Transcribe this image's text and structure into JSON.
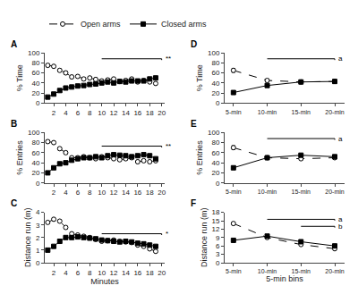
{
  "chart_data": [
    {
      "type": "line",
      "title": "A",
      "ylabel": "% Time",
      "x": [
        1,
        2,
        3,
        4,
        5,
        6,
        7,
        8,
        9,
        10,
        11,
        12,
        13,
        14,
        15,
        16,
        17,
        18,
        19
      ],
      "xlim": [
        0.5,
        20.5
      ],
      "xticks": [
        2,
        4,
        6,
        8,
        10,
        12,
        14,
        16,
        18,
        20
      ],
      "ylim": [
        0,
        100
      ],
      "yticks": [
        0,
        20,
        40,
        60,
        80,
        100
      ],
      "grid": false,
      "legend": "top",
      "series": [
        {
          "name": "Open arms",
          "color": "black",
          "marker": "circle-open",
          "line_style": "dash",
          "values": [
            75,
            73,
            65,
            60,
            52,
            53,
            48,
            50,
            47,
            44,
            46,
            48,
            43,
            45,
            48,
            42,
            45,
            42,
            39
          ],
          "errors": [
            3,
            3,
            3,
            3,
            3,
            3,
            3,
            3,
            3,
            3,
            3,
            3,
            3,
            3,
            3,
            3,
            3,
            3,
            3
          ]
        },
        {
          "name": "Closed arms",
          "color": "black",
          "marker": "square",
          "line_style": "solid",
          "values": [
            12,
            18,
            25,
            30,
            32,
            34,
            35,
            37,
            38,
            40,
            42,
            40,
            43,
            42,
            44,
            44,
            44,
            48,
            50
          ],
          "errors": [
            2,
            2,
            2,
            2,
            2,
            2,
            2,
            2,
            2,
            2,
            2,
            2,
            2,
            2,
            2,
            2,
            2,
            2,
            3
          ]
        }
      ],
      "annotations": [
        {
          "text": "**",
          "x_start": 10,
          "x_end": 20,
          "y": 88
        }
      ]
    },
    {
      "type": "line",
      "title": "B",
      "ylabel": "% Entries",
      "x": [
        1,
        2,
        3,
        4,
        5,
        6,
        7,
        8,
        9,
        10,
        11,
        12,
        13,
        14,
        15,
        16,
        17,
        18,
        19
      ],
      "xlim": [
        0.5,
        20.5
      ],
      "xticks": [
        2,
        4,
        6,
        8,
        10,
        12,
        14,
        16,
        18,
        20
      ],
      "ylim": [
        0,
        100
      ],
      "yticks": [
        0,
        20,
        40,
        60,
        80,
        100
      ],
      "grid": false,
      "series": [
        {
          "name": "Open arms",
          "color": "black",
          "marker": "circle-open",
          "line_style": "dash",
          "values": [
            82,
            80,
            68,
            60,
            50,
            50,
            52,
            50,
            48,
            52,
            50,
            48,
            46,
            48,
            50,
            42,
            44,
            42,
            44
          ],
          "errors": [
            3,
            3,
            3,
            3,
            3,
            3,
            3,
            3,
            3,
            3,
            3,
            3,
            3,
            3,
            3,
            3,
            3,
            3,
            3
          ]
        },
        {
          "name": "Closed arms",
          "color": "black",
          "marker": "square",
          "line_style": "solid",
          "values": [
            20,
            30,
            38,
            40,
            45,
            48,
            50,
            50,
            52,
            50,
            54,
            56,
            55,
            54,
            52,
            54,
            56,
            54,
            48
          ],
          "errors": [
            2,
            2,
            2,
            2,
            2,
            2,
            2,
            2,
            2,
            2,
            2,
            2,
            2,
            2,
            2,
            2,
            2,
            2,
            2
          ]
        }
      ],
      "annotations": [
        {
          "text": "**",
          "x_start": 10,
          "x_end": 20,
          "y": 73
        }
      ]
    },
    {
      "type": "line",
      "title": "C",
      "ylabel": "Distance run (m)",
      "xlabel": "Minutes",
      "x": [
        1,
        2,
        3,
        4,
        5,
        6,
        7,
        8,
        9,
        10,
        11,
        12,
        13,
        14,
        15,
        16,
        17,
        18,
        19
      ],
      "xlim": [
        0.5,
        20.5
      ],
      "xticks": [
        2,
        4,
        6,
        8,
        10,
        12,
        14,
        16,
        18,
        20
      ],
      "ylim": [
        0,
        4
      ],
      "yticks": [
        0,
        1,
        2,
        3,
        4
      ],
      "grid": false,
      "series": [
        {
          "name": "Open arms",
          "color": "black",
          "marker": "circle-open",
          "line_style": "dash",
          "values": [
            3.2,
            3.45,
            3.3,
            2.8,
            2.3,
            2.2,
            2.1,
            2.0,
            1.85,
            1.7,
            1.75,
            1.8,
            1.7,
            1.65,
            1.6,
            1.4,
            1.3,
            1.1,
            0.9
          ],
          "errors": [
            0.1,
            0.12,
            0.1,
            0.1,
            0.1,
            0.1,
            0.08,
            0.08,
            0.08,
            0.08,
            0.08,
            0.08,
            0.08,
            0.08,
            0.08,
            0.08,
            0.08,
            0.08,
            0.08
          ]
        },
        {
          "name": "Closed arms",
          "color": "black",
          "marker": "square",
          "line_style": "solid",
          "values": [
            1.0,
            1.3,
            1.7,
            2.0,
            2.0,
            2.05,
            2.0,
            1.95,
            1.9,
            1.8,
            1.75,
            1.7,
            1.65,
            1.7,
            1.65,
            1.55,
            1.5,
            1.4,
            1.3
          ],
          "errors": [
            0.08,
            0.08,
            0.08,
            0.08,
            0.08,
            0.08,
            0.08,
            0.08,
            0.08,
            0.08,
            0.08,
            0.08,
            0.08,
            0.08,
            0.08,
            0.08,
            0.08,
            0.08,
            0.08
          ]
        }
      ],
      "annotations": [
        {
          "text": "*",
          "x_start": 10,
          "x_end": 20,
          "y": 2.3
        }
      ]
    },
    {
      "type": "line",
      "title": "D",
      "ylabel": "% Time",
      "categories": [
        "5-min",
        "10-min",
        "15-min",
        "20-min"
      ],
      "ylim": [
        0,
        100
      ],
      "yticks": [
        0,
        20,
        40,
        60,
        80,
        100
      ],
      "grid": false,
      "series": [
        {
          "name": "Open arms",
          "color": "black",
          "marker": "circle-open",
          "line_style": "dash",
          "values": [
            65,
            45,
            42,
            43
          ],
          "errors": [
            4,
            3,
            3,
            3
          ]
        },
        {
          "name": "Closed arms",
          "color": "black",
          "marker": "square",
          "line_style": "solid",
          "values": [
            21,
            35,
            42,
            43
          ],
          "errors": [
            3,
            3,
            3,
            3
          ]
        }
      ],
      "annotations": [
        {
          "text": "a",
          "x_start": "10-min",
          "x_end": "20-min",
          "y": 88
        }
      ]
    },
    {
      "type": "line",
      "title": "E",
      "ylabel": "% Entries",
      "categories": [
        "5-min",
        "10-min",
        "15-min",
        "20-min"
      ],
      "ylim": [
        0,
        100
      ],
      "yticks": [
        0,
        20,
        40,
        60,
        80,
        100
      ],
      "grid": false,
      "series": [
        {
          "name": "Open arms",
          "color": "black",
          "marker": "circle-open",
          "line_style": "dash",
          "values": [
            70,
            50,
            48,
            50
          ],
          "errors": [
            4,
            3,
            3,
            3
          ]
        },
        {
          "name": "Closed arms",
          "color": "black",
          "marker": "square",
          "line_style": "solid",
          "values": [
            30,
            50,
            55,
            52
          ],
          "errors": [
            3,
            3,
            3,
            3
          ]
        }
      ],
      "annotations": [
        {
          "text": "a",
          "x_start": "10-min",
          "x_end": "20-min",
          "y": 88
        }
      ]
    },
    {
      "type": "line",
      "title": "F",
      "ylabel": "Distance run (m)",
      "xlabel": "5-min bins",
      "categories": [
        "5-min",
        "10-min",
        "15-min",
        "20-min"
      ],
      "ylim": [
        0,
        18
      ],
      "yticks": [
        0,
        3,
        6,
        9,
        12,
        15,
        18
      ],
      "grid": false,
      "series": [
        {
          "name": "Open arms",
          "color": "black",
          "marker": "circle-open",
          "line_style": "dash",
          "values": [
            14.0,
            9.0,
            6.5,
            5.0
          ],
          "errors": [
            0.5,
            0.5,
            0.4,
            0.4
          ]
        },
        {
          "name": "Closed arms",
          "color": "black",
          "marker": "square",
          "line_style": "solid",
          "values": [
            8.0,
            9.5,
            7.5,
            6.0
          ],
          "errors": [
            0.4,
            0.5,
            0.4,
            0.4
          ]
        }
      ],
      "annotations": [
        {
          "text": "a",
          "x_start": "10-min",
          "x_end": "20-min",
          "y": 15.5
        },
        {
          "text": "b",
          "x_start": "15-min",
          "x_end": "20-min",
          "y": 13.0
        }
      ]
    }
  ]
}
